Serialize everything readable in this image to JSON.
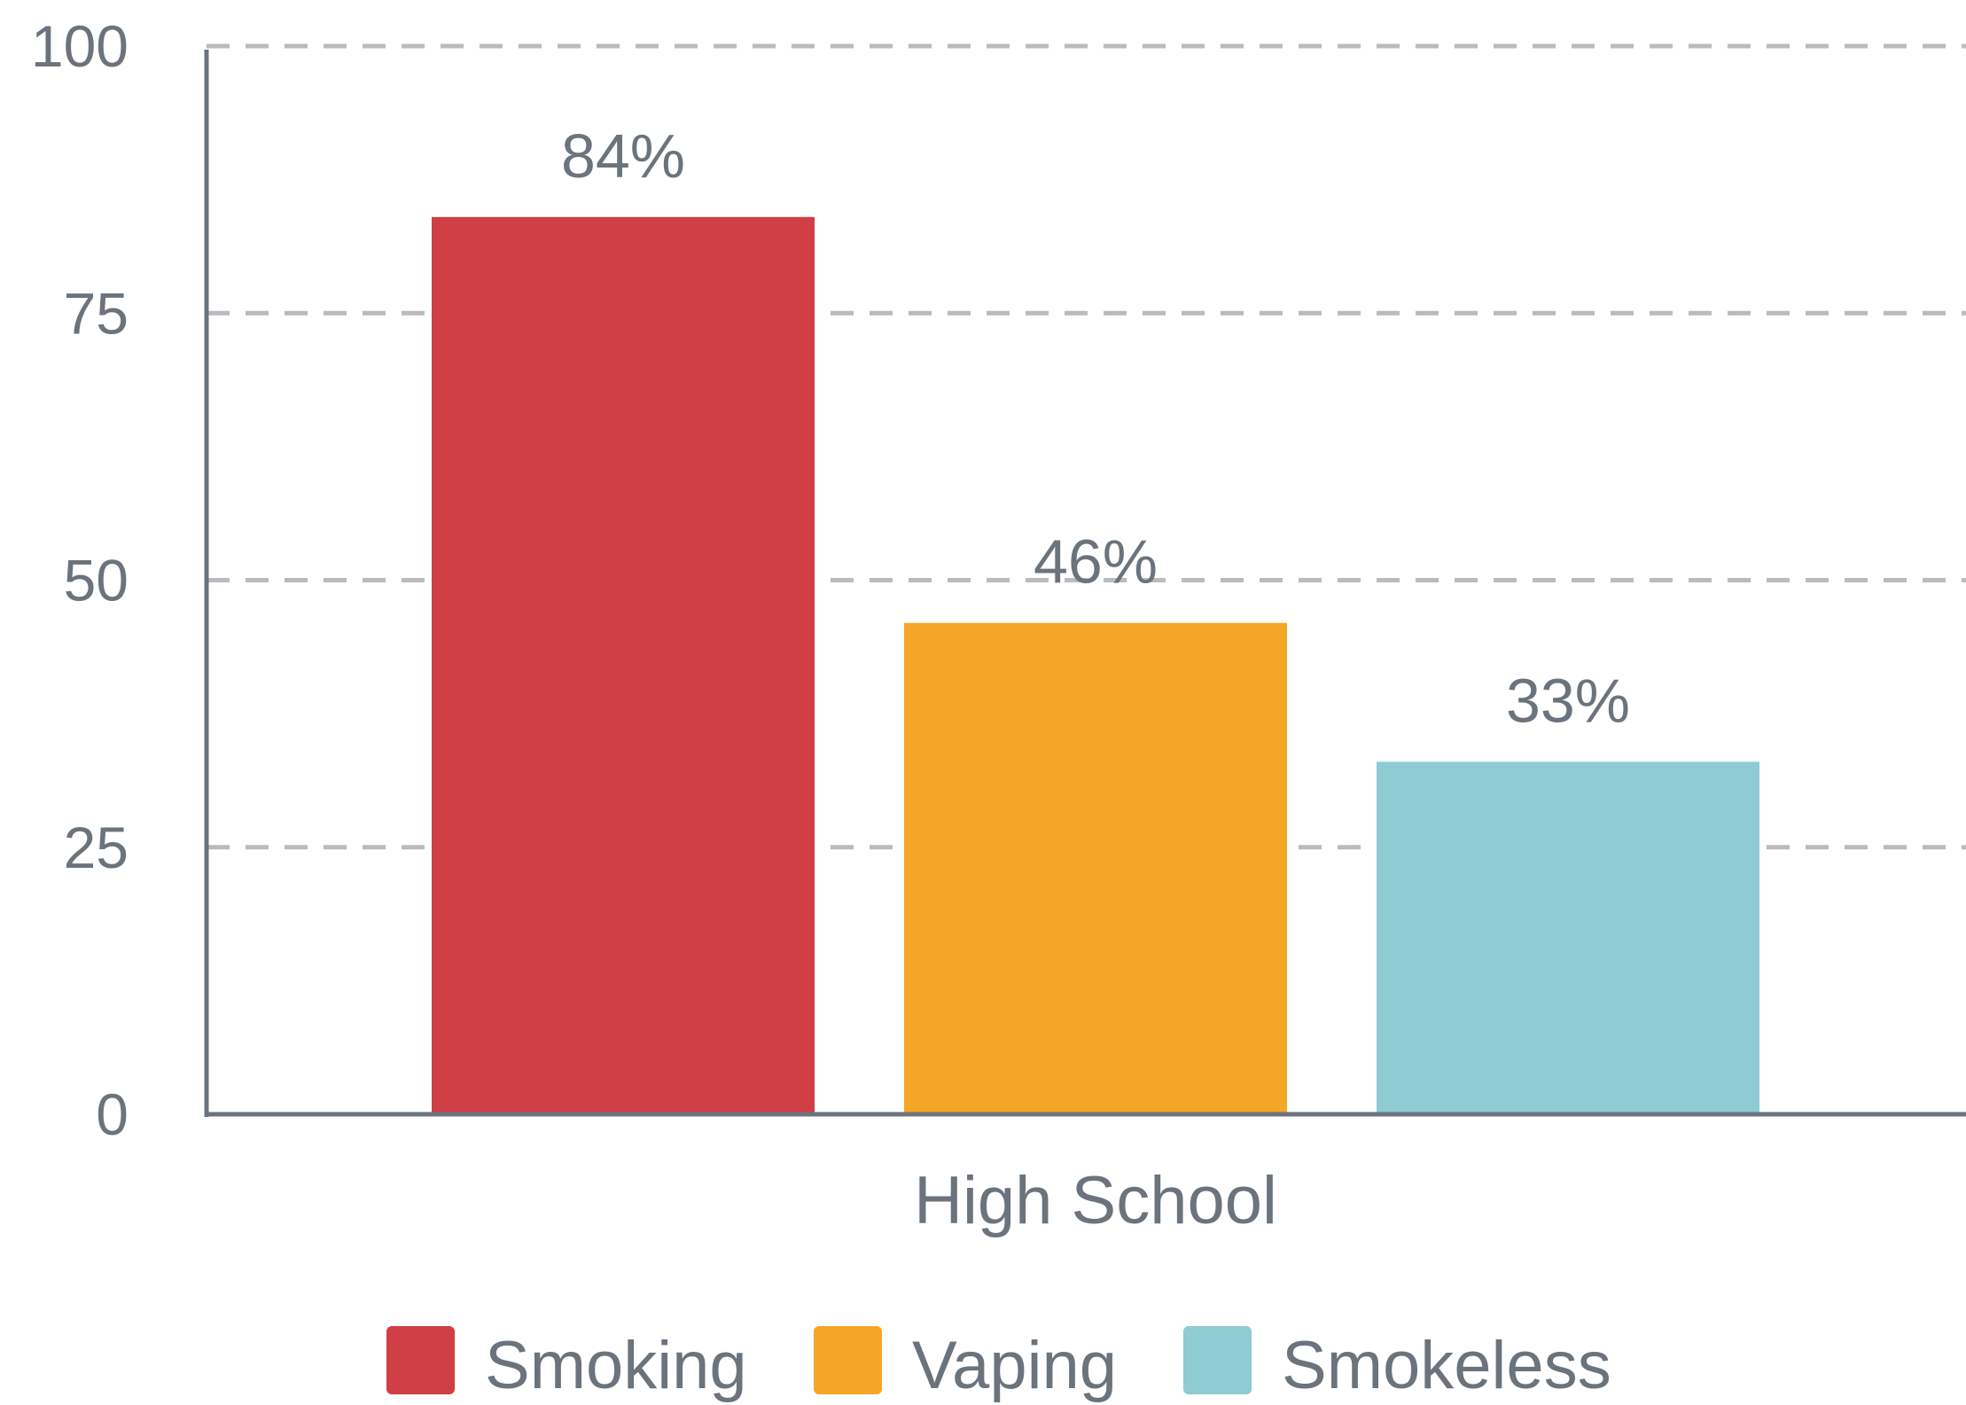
{
  "chart_data": {
    "type": "bar",
    "categories": [
      "High School"
    ],
    "series": [
      {
        "name": "Smoking",
        "values": [
          84
        ],
        "label": "84%",
        "color": "#cf3f45"
      },
      {
        "name": "Vaping",
        "values": [
          46
        ],
        "label": "46%",
        "color": "#f4a626"
      },
      {
        "name": "Smokeless",
        "values": [
          33
        ],
        "label": "33%",
        "color": "#8ecbd2"
      }
    ],
    "title": "",
    "xlabel": "",
    "ylabel": "",
    "ylim": [
      0,
      100
    ],
    "yticks": [
      0,
      25,
      50,
      75,
      100
    ],
    "grid": true,
    "legend_position": "bottom",
    "colors": {
      "axis": "#6b737c",
      "grid": "#b9bbbe",
      "text": "#6b737c"
    }
  }
}
